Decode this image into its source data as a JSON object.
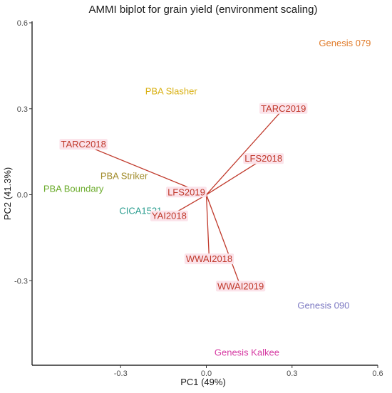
{
  "chart_data": {
    "type": "scatter",
    "title": "AMMI biplot for grain yield (environment scaling)",
    "xlabel": "PC1 (49%)",
    "ylabel": "PC2 (41.3%)",
    "xlim": [
      -0.61,
      0.6
    ],
    "ylim": [
      -0.595,
      0.605
    ],
    "xticks": [
      -0.3,
      0.0,
      0.3,
      0.6
    ],
    "yticks": [
      -0.3,
      0.0,
      0.3,
      0.6
    ],
    "tick_labels_x": [
      "-0.3",
      "0.0",
      "0.3",
      "0.6"
    ],
    "tick_labels_y": [
      "-0.3",
      "0.0",
      "0.3",
      "0.6"
    ],
    "grid": false,
    "colors": {
      "environment": "#c0392b",
      "env_label_bg": "#fbe3ea"
    },
    "genotypes": [
      {
        "name": "Genesis 079",
        "x": 0.485,
        "y": 0.528,
        "color": "#e07b2a"
      },
      {
        "name": "PBA Slasher",
        "x": -0.123,
        "y": 0.36,
        "color": "#d9b012"
      },
      {
        "name": "PBA Striker",
        "x": -0.288,
        "y": 0.065,
        "color": "#a08a28"
      },
      {
        "name": "PBA Boundary",
        "x": -0.465,
        "y": 0.02,
        "color": "#6aab2a"
      },
      {
        "name": "CICA1521",
        "x": -0.23,
        "y": -0.057,
        "color": "#2a9d8f"
      },
      {
        "name": "Genesis 090",
        "x": 0.41,
        "y": -0.387,
        "color": "#7b78c2"
      },
      {
        "name": "Genesis Kalkee",
        "x": 0.142,
        "y": -0.552,
        "color": "#d63ba3"
      }
    ],
    "environments": [
      {
        "name": "TARC2019",
        "x": 0.27,
        "y": 0.3
      },
      {
        "name": "LFS2018",
        "x": 0.2,
        "y": 0.125
      },
      {
        "name": "TARC2018",
        "x": -0.43,
        "y": 0.175
      },
      {
        "name": "LFS2019",
        "x": -0.07,
        "y": 0.008
      },
      {
        "name": "YAI2018",
        "x": -0.13,
        "y": -0.075
      },
      {
        "name": "WWAI2018",
        "x": 0.01,
        "y": -0.225
      },
      {
        "name": "WWAI2019",
        "x": 0.12,
        "y": -0.32
      }
    ]
  }
}
